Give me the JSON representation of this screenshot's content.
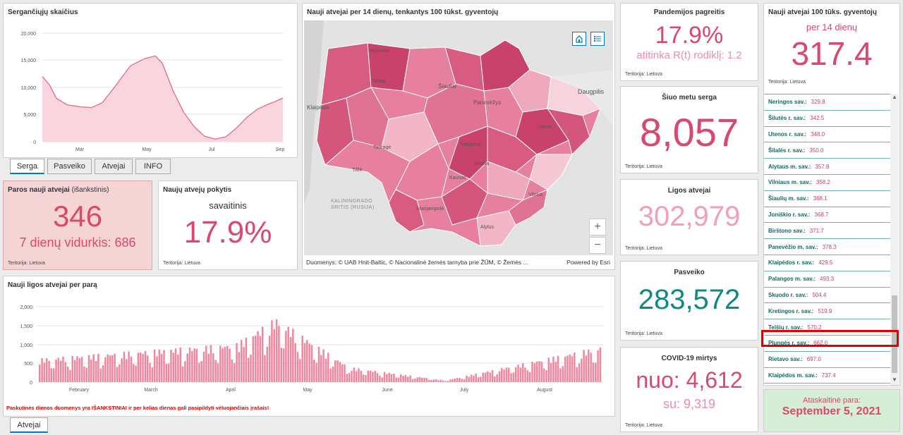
{
  "infected_chart": {
    "title": "Sergančiųjų skaičius",
    "y_ticks": [
      "20,000",
      "15,000",
      "10,000",
      "5,000",
      "0"
    ],
    "x_ticks": [
      "Mar",
      "May",
      "Jul",
      "Sep"
    ],
    "tabs": [
      "Serga",
      "Pasveiko",
      "Atvejai",
      "INFO"
    ],
    "active_tab": "Serga",
    "fill_color": "#f9d6de",
    "line_color": "#e06b8b"
  },
  "map": {
    "title": "Nauji atvejai per 14 dienų, tenkantys 100 tūkst. gyventojų",
    "place_labels": [
      "Mažeikiai",
      "Telšiai",
      "Šiauliai",
      "Panevėžys",
      "Klaipėda",
      "Tauragė",
      "Kėdainiai",
      "Jonava",
      "Utena",
      "Daugpilis",
      "Tilžė",
      "Kaunas",
      "Marijampolė",
      "Alytus",
      "Vilnius"
    ],
    "kaliningrad_label": "KALININGRADO SRITIS (RUSIJA)",
    "attribution": "Duomenys: © UAB Hnit-Baltic, © Nacionalinė žemės tarnyba prie ŽŪM, © Žemės ...",
    "powered_by": "Powered by Esri",
    "zoom_in": "+",
    "zoom_out": "−"
  },
  "growth": {
    "title": "Pandemijos pagreitis",
    "value": "17.9%",
    "subtitle": "atitinka R(t) rodiklį: 1.2",
    "territory": "Teritorija: Lietuva"
  },
  "per100k": {
    "title": "Nauji atvejai 100 tūks. gyventojų",
    "subtitle": "per 14 dienų",
    "value": "317.4",
    "territory": "Teritorija: Lietuva"
  },
  "municipalities": [
    {
      "name": "Neringos sav.:",
      "value": "329.8"
    },
    {
      "name": "Šilutės r. sav.:",
      "value": "342.5"
    },
    {
      "name": "Utenos r. sav.:",
      "value": "348.0"
    },
    {
      "name": "Šilalės r. sav.:",
      "value": "350.0"
    },
    {
      "name": "Alytaus m. sav.:",
      "value": "357.8"
    },
    {
      "name": "Vilniaus m. sav.:",
      "value": "358.2"
    },
    {
      "name": "Šiaulių m. sav.:",
      "value": "368.1"
    },
    {
      "name": "Joniškio r. sav.:",
      "value": "368.7"
    },
    {
      "name": "Birštono sav.:",
      "value": "371.7"
    },
    {
      "name": "Panevėžio m. sav.:",
      "value": "378.3"
    },
    {
      "name": "Klaipėdos r. sav.:",
      "value": "429.5"
    },
    {
      "name": "Palangos m. sav.:",
      "value": "493.3"
    },
    {
      "name": "Skuodo r. sav.:",
      "value": "504.4"
    },
    {
      "name": "Kretingos r. sav.:",
      "value": "519.9"
    },
    {
      "name": "Telšių r. sav.:",
      "value": "570.2"
    },
    {
      "name": "Plungės r. sav.:",
      "value": "662.0"
    },
    {
      "name": "Rietavo sav.:",
      "value": "697.0"
    },
    {
      "name": "Klaipėdos m. sav.:",
      "value": "737.4"
    }
  ],
  "daily_new": {
    "title": "Paros nauji atvejai",
    "title_note": "(išankstinis)",
    "value": "346",
    "avg": "7 dienų vidurkis: 686",
    "territory": "Teritorija: Lietuva"
  },
  "weekly_change": {
    "title": "Naujų atvejų pokytis",
    "subtitle": "savaitinis",
    "value": "17.9%",
    "territory": "Teritorija: Lietuva"
  },
  "current_sick": {
    "title": "Šiuo metu serga",
    "value": "8,057",
    "territory": "Teritorija: Lietuva"
  },
  "total_cases": {
    "title": "Ligos atvejai",
    "value": "302,979",
    "territory": "Teritorija: Lietuva"
  },
  "recovered": {
    "title": "Pasveiko",
    "value": "283,572",
    "territory": "Teritorija: Lietuva"
  },
  "deaths": {
    "title": "COVID-19 mirtys",
    "value": "nuo: 4,612",
    "sub": "su: 9,319",
    "territory": "Teritorija: Lietuva"
  },
  "daily_chart": {
    "title": "Nauji ligos atvejai per parą",
    "y_ticks": [
      "2,000",
      "1,500",
      "1,000",
      "500",
      "0"
    ],
    "x_ticks": [
      "February",
      "March",
      "April",
      "May",
      "June",
      "July",
      "August"
    ],
    "warning": "Paskutinės dienos duomenys yra IŠANKSTINIAI ir per kelias dienas gali pasipildyti vėluojančiais įrašais!",
    "tab": "Atvejai",
    "bar_color": "#f0879f"
  },
  "report_date": {
    "label": "Ataskaitinė para:",
    "value": "September 5, 2021"
  },
  "colors": {
    "pink": "#d9486f",
    "light_pink": "#f2a0b7",
    "teal": "#0f8a80",
    "highlight": "#e00000"
  }
}
